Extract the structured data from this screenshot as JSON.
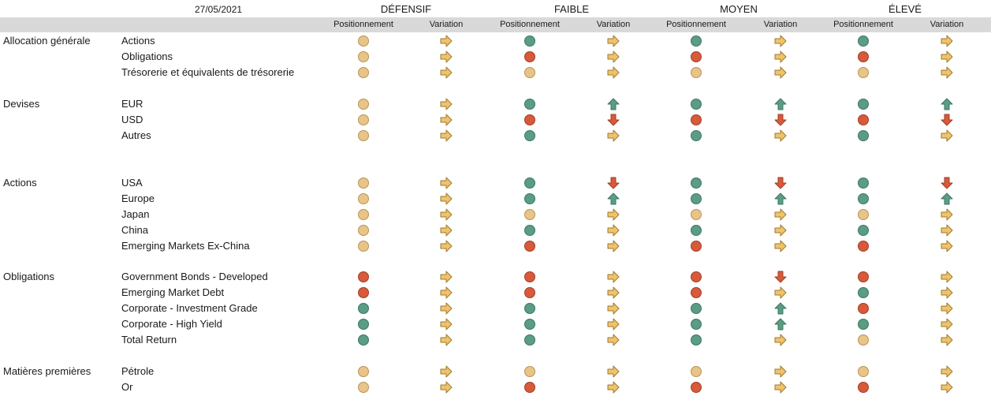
{
  "date": "27/05/2021",
  "sub_labels": {
    "position": "Positionnement",
    "variation": "Variation"
  },
  "profiles": [
    "DÉFENSIF",
    "FAIBLE",
    "MOYEN",
    "ÉLEVÉ"
  ],
  "colors": {
    "green": "#5b9c84",
    "orange": "#e9c489",
    "red": "#d75a3b",
    "header_band": "#d9d9d9"
  },
  "sections": [
    {
      "label": "Allocation générale",
      "rows": [
        {
          "label": "Actions",
          "cells": [
            [
              "orange",
              "right"
            ],
            [
              "green",
              "right"
            ],
            [
              "green",
              "right"
            ],
            [
              "green",
              "right"
            ]
          ]
        },
        {
          "label": "Obligations",
          "cells": [
            [
              "orange",
              "right"
            ],
            [
              "red",
              "right"
            ],
            [
              "red",
              "right"
            ],
            [
              "red",
              "right"
            ]
          ]
        },
        {
          "label": "Trésorerie et équivalents de trésorerie",
          "cells": [
            [
              "orange",
              "right"
            ],
            [
              "orange",
              "right"
            ],
            [
              "orange",
              "right"
            ],
            [
              "orange",
              "right"
            ]
          ]
        }
      ]
    },
    {
      "label": "Devises",
      "rows": [
        {
          "label": "EUR",
          "cells": [
            [
              "orange",
              "right"
            ],
            [
              "green",
              "up"
            ],
            [
              "green",
              "up"
            ],
            [
              "green",
              "up"
            ]
          ]
        },
        {
          "label": "USD",
          "cells": [
            [
              "orange",
              "right"
            ],
            [
              "red",
              "down"
            ],
            [
              "red",
              "down"
            ],
            [
              "red",
              "down"
            ]
          ]
        },
        {
          "label": "Autres",
          "cells": [
            [
              "orange",
              "right"
            ],
            [
              "green",
              "right"
            ],
            [
              "green",
              "right"
            ],
            [
              "green",
              "right"
            ]
          ]
        }
      ]
    },
    {
      "label": "Actions",
      "rows": [
        {
          "label": "USA",
          "cells": [
            [
              "orange",
              "right"
            ],
            [
              "green",
              "down"
            ],
            [
              "green",
              "down"
            ],
            [
              "green",
              "down"
            ]
          ]
        },
        {
          "label": "Europe",
          "cells": [
            [
              "orange",
              "right"
            ],
            [
              "green",
              "up"
            ],
            [
              "green",
              "up"
            ],
            [
              "green",
              "up"
            ]
          ]
        },
        {
          "label": "Japan",
          "cells": [
            [
              "orange",
              "right"
            ],
            [
              "orange",
              "right"
            ],
            [
              "orange",
              "right"
            ],
            [
              "orange",
              "right"
            ]
          ]
        },
        {
          "label": "China",
          "cells": [
            [
              "orange",
              "right"
            ],
            [
              "green",
              "right"
            ],
            [
              "green",
              "right"
            ],
            [
              "green",
              "right"
            ]
          ]
        },
        {
          "label": "Emerging Markets Ex-China",
          "cells": [
            [
              "orange",
              "right"
            ],
            [
              "red",
              "right"
            ],
            [
              "red",
              "right"
            ],
            [
              "red",
              "right"
            ]
          ]
        }
      ]
    },
    {
      "label": "Obligations",
      "rows": [
        {
          "label": "Government Bonds - Developed",
          "cells": [
            [
              "red",
              "right"
            ],
            [
              "red",
              "right"
            ],
            [
              "red",
              "down"
            ],
            [
              "red",
              "right"
            ]
          ]
        },
        {
          "label": "Emerging Market Debt",
          "cells": [
            [
              "red",
              "right"
            ],
            [
              "red",
              "right"
            ],
            [
              "red",
              "right"
            ],
            [
              "green",
              "right"
            ]
          ]
        },
        {
          "label": "Corporate - Investment Grade",
          "cells": [
            [
              "green",
              "right"
            ],
            [
              "green",
              "right"
            ],
            [
              "green",
              "up"
            ],
            [
              "red",
              "right"
            ]
          ]
        },
        {
          "label": "Corporate - High Yield",
          "cells": [
            [
              "green",
              "right"
            ],
            [
              "green",
              "right"
            ],
            [
              "green",
              "up"
            ],
            [
              "green",
              "right"
            ]
          ]
        },
        {
          "label": "Total Return",
          "cells": [
            [
              "green",
              "right"
            ],
            [
              "green",
              "right"
            ],
            [
              "green",
              "right"
            ],
            [
              "orange",
              "right"
            ]
          ]
        }
      ]
    },
    {
      "label": "Matières premières",
      "rows": [
        {
          "label": "Pétrole",
          "cells": [
            [
              "orange",
              "right"
            ],
            [
              "orange",
              "right"
            ],
            [
              "orange",
              "right"
            ],
            [
              "orange",
              "right"
            ]
          ]
        },
        {
          "label": "Or",
          "cells": [
            [
              "orange",
              "right"
            ],
            [
              "red",
              "right"
            ],
            [
              "red",
              "right"
            ],
            [
              "red",
              "right"
            ]
          ]
        }
      ]
    }
  ]
}
